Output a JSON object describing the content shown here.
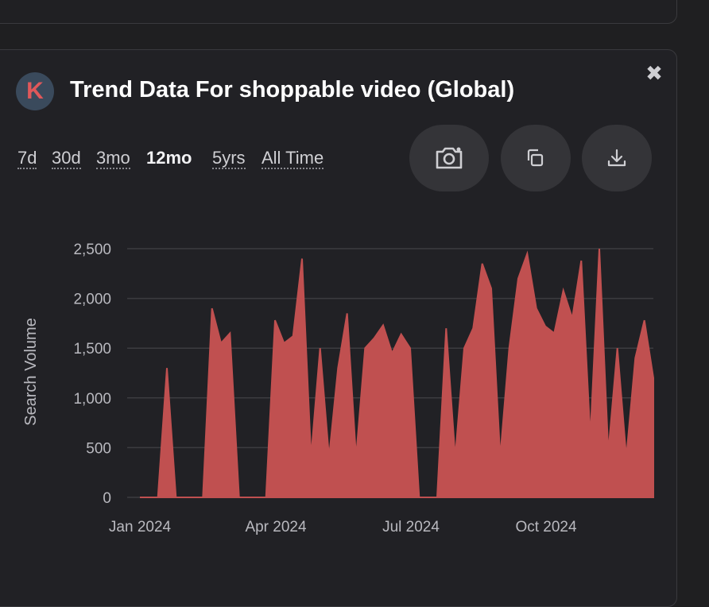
{
  "header": {
    "logo_letter": "K",
    "title": "Trend Data For shoppable video (Global)",
    "close_icon": "✖"
  },
  "ranges": [
    {
      "label": "7d",
      "active": false
    },
    {
      "label": "30d",
      "active": false
    },
    {
      "label": "3mo",
      "active": false
    },
    {
      "label": "12mo",
      "active": true
    },
    {
      "label": "5yrs",
      "active": false
    },
    {
      "label": "All Time",
      "active": false
    }
  ],
  "toolbar": {
    "screenshot_icon": "camera-icon",
    "copy_icon": "copy-icon",
    "download_icon": "download-icon"
  },
  "colors": {
    "fill": "#c05050",
    "grid": "#3c3c40",
    "text": "#b9b9bf"
  },
  "chart_data": {
    "type": "area",
    "ylabel": "Search Volume",
    "ylim": [
      0,
      2500
    ],
    "yticks": [
      "0",
      "500",
      "1,000",
      "1,500",
      "2,000",
      "2,500"
    ],
    "ytick_values": [
      0,
      500,
      1000,
      1500,
      2000,
      2500
    ],
    "xticks": [
      "Jan 2024",
      "Apr 2024",
      "Jul 2024",
      "Oct 2024"
    ],
    "grid": true,
    "series": [
      {
        "values": [
          0,
          0,
          0,
          1300,
          0,
          0,
          0,
          0,
          1900,
          1550,
          1650,
          0,
          0,
          0,
          0,
          1780,
          1550,
          1620,
          2400,
          400,
          1500,
          400,
          1300,
          1850,
          400,
          1500,
          1600,
          1730,
          1450,
          1640,
          1500,
          0,
          0,
          0,
          1700,
          400,
          1500,
          1700,
          2350,
          2100,
          400,
          1500,
          2200,
          2450,
          1900,
          1720,
          1650,
          2080,
          1800,
          2380,
          600,
          2500,
          450,
          1500,
          400,
          1400,
          1780,
          1200
        ]
      }
    ]
  }
}
